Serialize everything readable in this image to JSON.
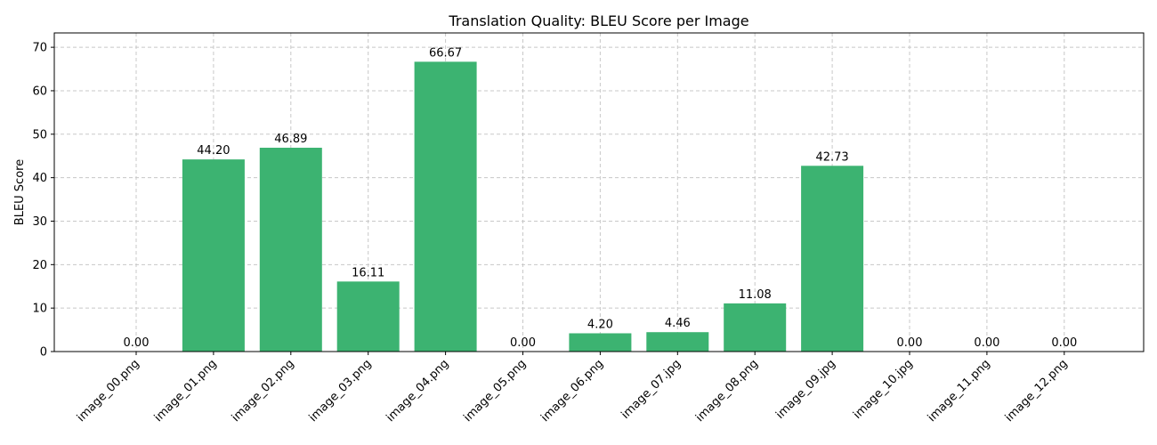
{
  "chart_data": {
    "type": "bar",
    "title": "Translation Quality: BLEU Score per Image",
    "xlabel": "",
    "ylabel": "BLEU Score",
    "ylim": [
      0,
      73.3
    ],
    "yticks": [
      0,
      10,
      20,
      30,
      40,
      50,
      60,
      70
    ],
    "grid": true,
    "bar_color": "#3cb371",
    "categories": [
      "image_00.png",
      "image_01.png",
      "image_02.png",
      "image_03.png",
      "image_04.png",
      "image_05.png",
      "image_06.png",
      "image_07.jpg",
      "image_08.png",
      "image_09.jpg",
      "image_10.jpg",
      "image_11.png",
      "image_12.png"
    ],
    "values": [
      0.0,
      44.2,
      46.89,
      16.11,
      66.67,
      0.0,
      4.2,
      4.46,
      11.08,
      42.73,
      0.0,
      0.0,
      0.0
    ],
    "value_labels": [
      "0.00",
      "44.20",
      "46.89",
      "16.11",
      "66.67",
      "0.00",
      "4.20",
      "4.46",
      "11.08",
      "42.73",
      "0.00",
      "0.00",
      "0.00"
    ]
  }
}
